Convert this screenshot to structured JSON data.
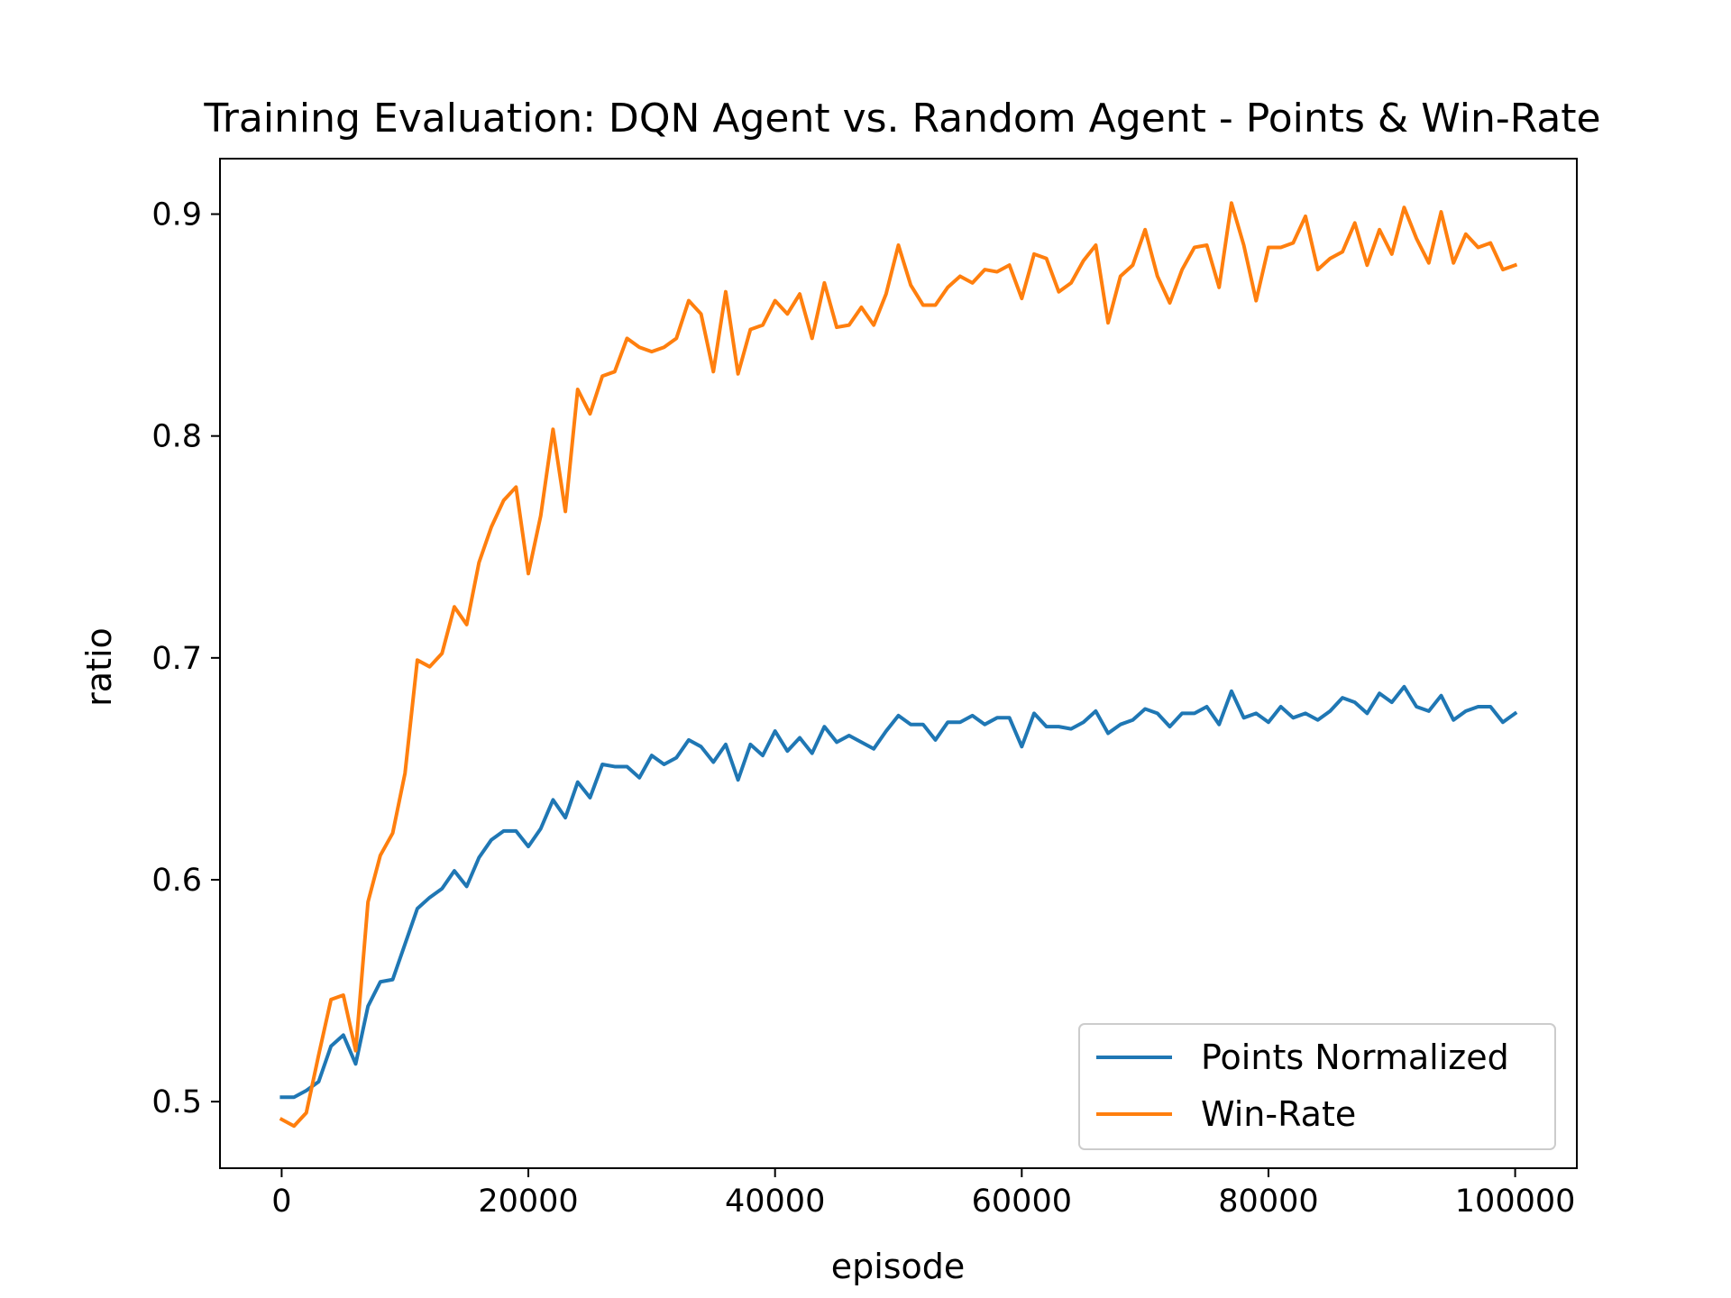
{
  "chart_data": {
    "type": "line",
    "title": "Training Evaluation: DQN Agent vs. Random Agent - Points & Win-Rate",
    "xlabel": "episode",
    "ylabel": "ratio",
    "xlim": [
      -5000,
      105000
    ],
    "ylim": [
      0.47,
      0.925
    ],
    "xticks": [
      0,
      20000,
      40000,
      60000,
      80000,
      100000
    ],
    "xtick_labels": [
      "0",
      "20000",
      "40000",
      "60000",
      "80000",
      "100000"
    ],
    "yticks": [
      0.5,
      0.6,
      0.7,
      0.8,
      0.9
    ],
    "ytick_labels": [
      "0.5",
      "0.6",
      "0.7",
      "0.8",
      "0.9"
    ],
    "grid": false,
    "legend_position": "lower-right",
    "x": [
      0,
      1000,
      2000,
      3000,
      4000,
      5000,
      6000,
      7000,
      8000,
      9000,
      10000,
      11000,
      12000,
      13000,
      14000,
      15000,
      16000,
      17000,
      18000,
      19000,
      20000,
      21000,
      22000,
      23000,
      24000,
      25000,
      26000,
      27000,
      28000,
      29000,
      30000,
      31000,
      32000,
      33000,
      34000,
      35000,
      36000,
      37000,
      38000,
      39000,
      40000,
      41000,
      42000,
      43000,
      44000,
      45000,
      46000,
      47000,
      48000,
      49000,
      50000,
      51000,
      52000,
      53000,
      54000,
      55000,
      56000,
      57000,
      58000,
      59000,
      60000,
      61000,
      62000,
      63000,
      64000,
      65000,
      66000,
      67000,
      68000,
      69000,
      70000,
      71000,
      72000,
      73000,
      74000,
      75000,
      76000,
      77000,
      78000,
      79000,
      80000,
      81000,
      82000,
      83000,
      84000,
      85000,
      86000,
      87000,
      88000,
      89000,
      90000,
      91000,
      92000,
      93000,
      94000,
      95000,
      96000,
      97000,
      98000,
      99000,
      100000
    ],
    "series": [
      {
        "name": "Points Normalized",
        "color": "#1f77b4",
        "values": [
          0.502,
          0.502,
          0.505,
          0.509,
          0.525,
          0.53,
          0.517,
          0.543,
          0.554,
          0.555,
          0.571,
          0.587,
          0.592,
          0.596,
          0.604,
          0.597,
          0.61,
          0.618,
          0.622,
          0.622,
          0.615,
          0.623,
          0.636,
          0.628,
          0.644,
          0.637,
          0.652,
          0.651,
          0.651,
          0.646,
          0.656,
          0.652,
          0.655,
          0.663,
          0.66,
          0.653,
          0.661,
          0.645,
          0.661,
          0.656,
          0.667,
          0.658,
          0.664,
          0.657,
          0.669,
          0.662,
          0.665,
          0.662,
          0.659,
          0.667,
          0.674,
          0.67,
          0.67,
          0.663,
          0.671,
          0.671,
          0.674,
          0.67,
          0.673,
          0.673,
          0.66,
          0.675,
          0.669,
          0.669,
          0.668,
          0.671,
          0.676,
          0.666,
          0.67,
          0.672,
          0.677,
          0.675,
          0.669,
          0.675,
          0.675,
          0.678,
          0.67,
          0.685,
          0.673,
          0.675,
          0.671,
          0.678,
          0.673,
          0.675,
          0.672,
          0.676,
          0.682,
          0.68,
          0.675,
          0.684,
          0.68,
          0.687,
          0.678,
          0.676,
          0.683,
          0.672,
          0.676,
          0.678,
          0.678,
          0.671,
          0.675
        ]
      },
      {
        "name": "Win-Rate",
        "color": "#ff7f0e",
        "values": [
          0.492,
          0.489,
          0.495,
          0.521,
          0.546,
          0.548,
          0.523,
          0.59,
          0.611,
          0.621,
          0.648,
          0.699,
          0.696,
          0.702,
          0.723,
          0.715,
          0.743,
          0.759,
          0.771,
          0.777,
          0.738,
          0.764,
          0.803,
          0.766,
          0.821,
          0.81,
          0.827,
          0.829,
          0.844,
          0.84,
          0.838,
          0.84,
          0.844,
          0.861,
          0.855,
          0.829,
          0.865,
          0.828,
          0.848,
          0.85,
          0.861,
          0.855,
          0.864,
          0.844,
          0.869,
          0.849,
          0.85,
          0.858,
          0.85,
          0.864,
          0.886,
          0.868,
          0.859,
          0.859,
          0.867,
          0.872,
          0.869,
          0.875,
          0.874,
          0.877,
          0.862,
          0.882,
          0.88,
          0.865,
          0.869,
          0.879,
          0.886,
          0.851,
          0.872,
          0.877,
          0.893,
          0.872,
          0.86,
          0.875,
          0.885,
          0.886,
          0.867,
          0.905,
          0.886,
          0.861,
          0.885,
          0.885,
          0.887,
          0.899,
          0.875,
          0.88,
          0.883,
          0.896,
          0.877,
          0.893,
          0.882,
          0.903,
          0.889,
          0.878,
          0.901,
          0.878,
          0.891,
          0.885,
          0.887,
          0.875,
          0.877
        ]
      }
    ]
  }
}
